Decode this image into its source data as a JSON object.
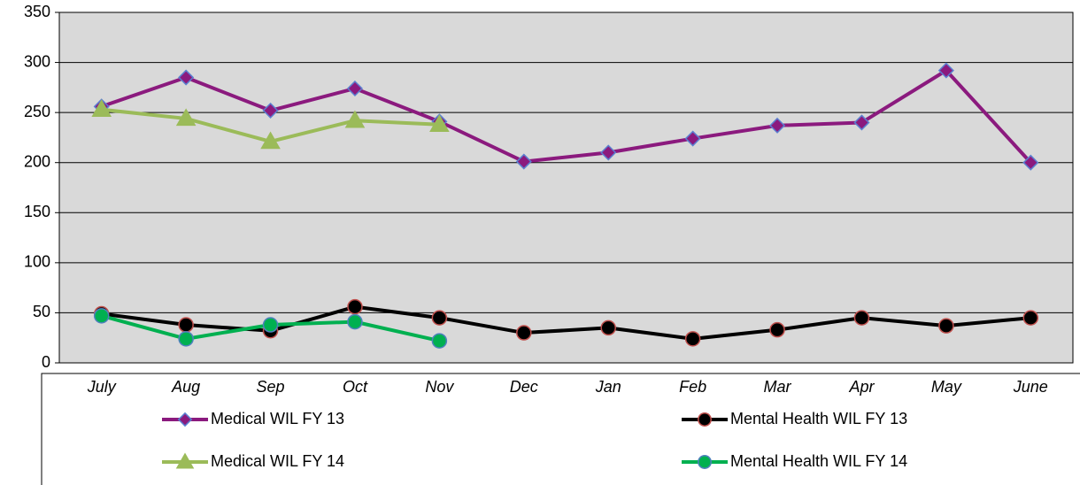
{
  "chart_data": {
    "type": "line",
    "categories": [
      "July",
      "Aug",
      "Sep",
      "Oct",
      "Nov",
      "Dec",
      "Jan",
      "Feb",
      "Mar",
      "Apr",
      "May",
      "June"
    ],
    "series": [
      {
        "name": "Medical WIL FY 13",
        "color": "#8b1a7e",
        "marker": "diamond",
        "marker_edge": "#5b7fd0",
        "values": [
          256,
          285,
          252,
          274,
          241,
          201,
          210,
          224,
          237,
          240,
          292,
          200
        ]
      },
      {
        "name": "Mental Health WIL FY 13",
        "color": "#000000",
        "marker": "circle",
        "marker_edge": "#c0504d",
        "values": [
          49,
          38,
          32,
          56,
          45,
          30,
          35,
          24,
          33,
          45,
          37,
          45
        ]
      },
      {
        "name": "Medical WIL FY 14",
        "color": "#9bbb59",
        "marker": "triangle",
        "marker_edge": "#9bbb59",
        "values": [
          253,
          244,
          221,
          242,
          238,
          null,
          null,
          null,
          null,
          null,
          null,
          null
        ]
      },
      {
        "name": "Mental Health WIL FY 14",
        "color": "#00b050",
        "marker": "circle",
        "marker_edge": "#4f81bd",
        "values": [
          47,
          24,
          38,
          41,
          22,
          null,
          null,
          null,
          null,
          null,
          null,
          null
        ]
      }
    ],
    "ylim": [
      0,
      350
    ],
    "yticks": [
      0,
      50,
      100,
      150,
      200,
      250,
      300,
      350
    ],
    "grid": true,
    "plot_background": "#d9d9d9",
    "legend": "bottom"
  }
}
